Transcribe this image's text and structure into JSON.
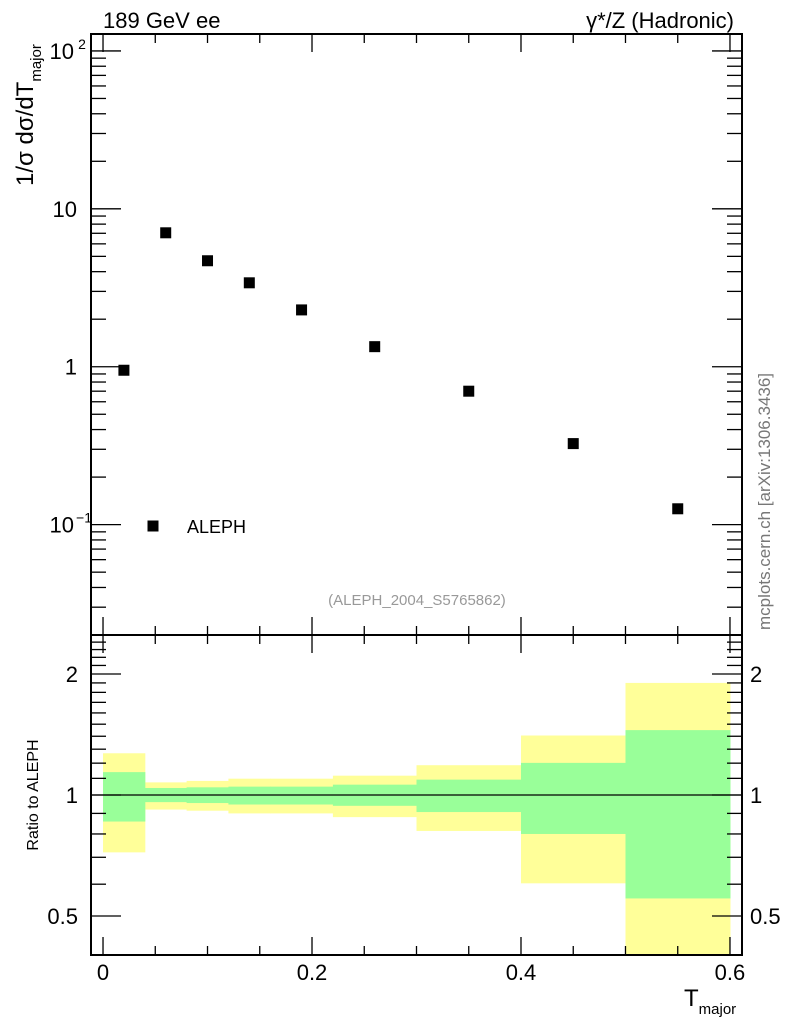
{
  "chart_data": [
    {
      "type": "scatter",
      "title_left": "189 GeV ee",
      "title_right": "γ*/Z (Hadronic)",
      "ylabel": "1/σ  dσ/dT",
      "ylabel_sub": "major",
      "yscale": "log",
      "ylim": [
        0.02,
        128
      ],
      "xlim": [
        -0.0115,
        0.6115
      ],
      "ytick_labels": [
        {
          "v": 0.1,
          "base": "10",
          "exp": "−1"
        },
        {
          "v": 1,
          "base": "1",
          "exp": ""
        },
        {
          "v": 10,
          "base": "10",
          "exp": ""
        },
        {
          "v": 100,
          "base": "10",
          "exp": "2"
        }
      ],
      "series": [
        {
          "name": "ALEPH",
          "marker": "square",
          "color": "#000000",
          "x": [
            0.02,
            0.06,
            0.1,
            0.14,
            0.19,
            0.26,
            0.35,
            0.45,
            0.55
          ],
          "y": [
            0.95,
            7.05,
            4.69,
            3.4,
            2.29,
            1.34,
            0.7,
            0.326,
            0.126
          ]
        }
      ],
      "legend": {
        "label": "ALEPH",
        "placement": "bottom-left"
      },
      "annotation": "(ALEPH_2004_S5765862)",
      "side_label": "mcplots.cern.ch [arXiv:1306.3436]"
    },
    {
      "type": "area",
      "ylabel": "Ratio to ALEPH",
      "xlabel": "T",
      "xlabel_sub": "major",
      "yscale": "log",
      "ylim": [
        0.4,
        2.5
      ],
      "xlim": [
        -0.0115,
        0.6115
      ],
      "xtick_labels": [
        "0",
        "0.2",
        "0.4",
        "0.6"
      ],
      "xticks": [
        0,
        0.2,
        0.4,
        0.6
      ],
      "ytick_labels": [
        "0.5",
        "1",
        "2"
      ],
      "yticks": [
        0.5,
        1,
        2
      ],
      "bin_edges": [
        0,
        0.04,
        0.08,
        0.12,
        0.16,
        0.22,
        0.3,
        0.4,
        0.5,
        0.6
      ],
      "bands": [
        {
          "name": "total uncertainty",
          "color": "#ffff99",
          "lo": [
            0.72,
            0.92,
            0.914,
            0.9,
            0.9,
            0.881,
            0.814,
            0.603,
            0.35
          ],
          "hi": [
            1.27,
            1.075,
            1.084,
            1.098,
            1.098,
            1.117,
            1.186,
            1.406,
            1.9
          ]
        },
        {
          "name": "statistical uncertainty",
          "color": "#99ff99",
          "lo": [
            0.859,
            0.96,
            0.955,
            0.947,
            0.947,
            0.94,
            0.907,
            0.8,
            0.553
          ],
          "hi": [
            1.14,
            1.041,
            1.045,
            1.049,
            1.049,
            1.061,
            1.092,
            1.202,
            1.45
          ]
        }
      ],
      "reference_line": 1
    }
  ]
}
